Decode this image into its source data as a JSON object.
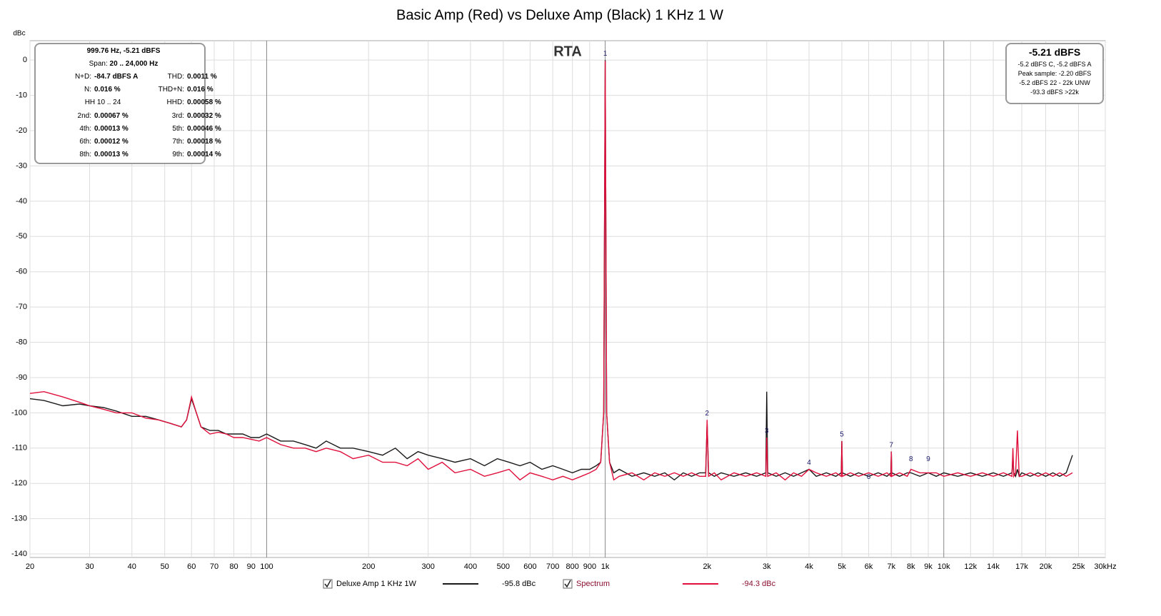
{
  "chart_data": {
    "type": "line",
    "title": "Basic Amp (Red) vs Deluxe Amp (Black) 1 KHz 1 W",
    "annotation": "RTA",
    "y_label": "dBc",
    "log_x": true,
    "grid": true,
    "xlim": [
      20,
      30000
    ],
    "ylim": [
      -141,
      5.5
    ],
    "xticks": [
      20,
      30,
      40,
      50,
      60,
      70,
      80,
      90,
      100,
      200,
      300,
      400,
      500,
      600,
      700,
      800,
      900,
      {
        "value": 1000,
        "label": "1k"
      },
      {
        "value": 2000,
        "label": "2k"
      },
      {
        "value": 3000,
        "label": "3k"
      },
      {
        "value": 4000,
        "label": "4k"
      },
      {
        "value": 5000,
        "label": "5k"
      },
      {
        "value": 6000,
        "label": "6k"
      },
      {
        "value": 7000,
        "label": "7k"
      },
      {
        "value": 8000,
        "label": "8k"
      },
      {
        "value": 9000,
        "label": "9k"
      },
      {
        "value": 10000,
        "label": "10k"
      },
      {
        "value": 12000,
        "label": "12k"
      },
      {
        "value": 14000,
        "label": "14k"
      },
      {
        "value": 17000,
        "label": "17k"
      },
      {
        "value": 20000,
        "label": "20k"
      },
      {
        "value": 25000,
        "label": "25k"
      },
      {
        "value": 30000,
        "label": "30kHz"
      }
    ],
    "yticks": [
      0,
      -10,
      -20,
      -30,
      -40,
      -50,
      -60,
      -70,
      -80,
      -90,
      -100,
      -110,
      -120,
      -130,
      -140
    ],
    "x": [
      20,
      22,
      25,
      28,
      30,
      33,
      36,
      40,
      44,
      48,
      52,
      56,
      58,
      60,
      62,
      64,
      68,
      72,
      76,
      80,
      85,
      90,
      95,
      100,
      110,
      120,
      130,
      140,
      150,
      165,
      180,
      200,
      220,
      240,
      260,
      280,
      300,
      330,
      360,
      400,
      440,
      480,
      520,
      560,
      600,
      650,
      700,
      750,
      800,
      850,
      900,
      940,
      970,
      990,
      1000,
      1010,
      1030,
      1060,
      1100,
      1200,
      1300,
      1400,
      1500,
      1600,
      1700,
      1800,
      1900,
      1980,
      2000,
      2020,
      2100,
      2200,
      2400,
      2600,
      2800,
      2980,
      3000,
      3020,
      3200,
      3400,
      3600,
      3800,
      4000,
      4200,
      4500,
      4800,
      4980,
      5000,
      5020,
      5300,
      5600,
      6000,
      6400,
      6800,
      6980,
      7000,
      7020,
      7400,
      7800,
      8000,
      8500,
      9000,
      9500,
      10000,
      11000,
      12000,
      13000,
      14000,
      15000,
      15900,
      16000,
      16100,
      16300,
      16500,
      16700,
      17000,
      18000,
      19000,
      20000,
      21000,
      22000,
      23000,
      24000
    ],
    "series": [
      {
        "name": "Deluxe Amp 1 KHz 1W",
        "legend_value": "-95.8 dBc",
        "color": "#1a1a1a",
        "values": [
          -96,
          -96.5,
          -98,
          -97.5,
          -98,
          -98.5,
          -99.5,
          -101,
          -101,
          -102,
          -103,
          -104,
          -102,
          -96,
          -100,
          -104,
          -105,
          -105,
          -106,
          -106,
          -106,
          -107,
          -107,
          -106,
          -108,
          -108,
          -109,
          -110,
          -108,
          -110,
          -110,
          -111,
          -112,
          -110,
          -113,
          -111,
          -112,
          -113,
          -114,
          -113,
          -115,
          -113,
          -114,
          -115,
          -114,
          -116,
          -115,
          -116,
          -117,
          -116,
          -116,
          -115,
          -114,
          -100,
          0,
          -100,
          -114,
          -117,
          -116,
          -118,
          -117,
          -118,
          -117,
          -119,
          -117,
          -118,
          -117,
          -117,
          -103,
          -117,
          -118,
          -117,
          -118,
          -117,
          -118,
          -117,
          -94,
          -117,
          -118,
          -117,
          -118,
          -117,
          -116,
          -118,
          -117,
          -118,
          -117,
          -108,
          -117,
          -118,
          -117,
          -118,
          -117,
          -118,
          -117,
          -111,
          -117,
          -118,
          -117,
          -117,
          -118,
          -117,
          -118,
          -117,
          -118,
          -117,
          -118,
          -117,
          -118,
          -117,
          -112,
          -117,
          -118,
          -116,
          -118,
          -117,
          -118,
          -117,
          -118,
          -117,
          -118,
          -117,
          -112
        ]
      },
      {
        "name": "Spectrum",
        "legend_value": "-94.3 dBc",
        "color": "#e0103c",
        "values": [
          -94.5,
          -94,
          -95.5,
          -97,
          -98,
          -99,
          -100,
          -100,
          -101.5,
          -102,
          -103,
          -104,
          -102,
          -95.5,
          -100,
          -104,
          -106,
          -105.5,
          -106,
          -107,
          -107,
          -107.5,
          -108,
          -107,
          -109,
          -110,
          -110,
          -111,
          -110,
          -111,
          -113,
          -112,
          -114,
          -114,
          -115,
          -113,
          -116,
          -114,
          -117,
          -116,
          -118,
          -117,
          -116,
          -119,
          -117,
          -118,
          -119,
          -118,
          -119,
          -118,
          -117,
          -116,
          -114,
          -100,
          -0.2,
          -100,
          -114,
          -119,
          -118,
          -117,
          -119,
          -117,
          -118,
          -117,
          -118,
          -117,
          -118,
          -118,
          -102,
          -118,
          -117,
          -119,
          -117,
          -118,
          -117,
          -118,
          -107,
          -118,
          -117,
          -119,
          -117,
          -118,
          -116,
          -117,
          -118,
          -117,
          -118,
          -108,
          -118,
          -117,
          -118,
          -117,
          -118,
          -117,
          -118,
          -111,
          -118,
          -117,
          -118,
          -116,
          -117,
          -117,
          -117,
          -118,
          -117,
          -118,
          -117,
          -118,
          -117,
          -118,
          -110,
          -118,
          -117,
          -105,
          -118,
          -118,
          -117,
          -118,
          -117,
          -118,
          -117,
          -118,
          -117
        ]
      }
    ],
    "markers": [
      {
        "label": "1",
        "x": 1000,
        "y": 0
      },
      {
        "label": "2",
        "x": 2000,
        "y": -102
      },
      {
        "label": "3",
        "x": 3000,
        "y": -107
      },
      {
        "label": "4",
        "x": 4000,
        "y": -116
      },
      {
        "label": "5",
        "x": 5000,
        "y": -108
      },
      {
        "label": "6",
        "x": 6000,
        "y": -120
      },
      {
        "label": "7",
        "x": 7000,
        "y": -111
      },
      {
        "label": "8",
        "x": 8000,
        "y": -115
      },
      {
        "label": "9",
        "x": 9000,
        "y": -115
      }
    ]
  },
  "info_box": {
    "header": "999.76 Hz, -5.21 dBFS",
    "span_label": "Span:",
    "span": "20 .. 24,000 Hz",
    "rows": [
      [
        "N+D:",
        "-84.7 dBFS A",
        "THD:",
        "0.0011 %"
      ],
      [
        "N:",
        "0.016 %",
        "THD+N:",
        "0.016 %"
      ],
      [
        "HH 10 .. 24",
        "HHD:",
        "0.00058 %"
      ],
      [
        "2nd:",
        "0.00067 %",
        "3rd:",
        "0.00032 %"
      ],
      [
        "4th:",
        "0.00013 %",
        "5th:",
        "0.00046 %"
      ],
      [
        "6th:",
        "0.00012 %",
        "7th:",
        "0.00018 %"
      ],
      [
        "8th:",
        "0.00013 %",
        "9th:",
        "0.00014 %"
      ]
    ]
  },
  "level_box": {
    "level": "-5.21 dBFS",
    "lines": [
      "-5.2 dBFS C, -5.2 dBFS A",
      "Peak sample: -2.20 dBFS",
      "-5.2 dBFS 22 - 22k UNW",
      "-93.3 dBFS >22k"
    ]
  }
}
